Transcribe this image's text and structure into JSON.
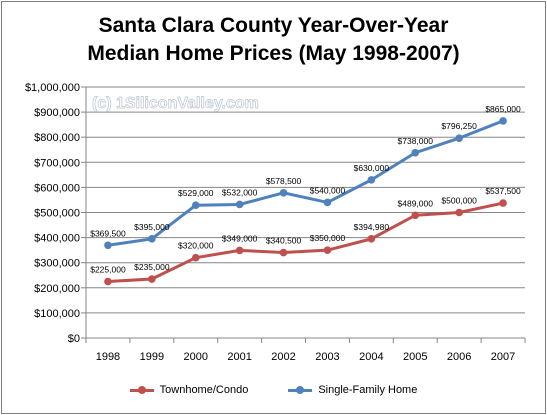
{
  "chart_data": {
    "type": "line",
    "title": [
      "Santa Clara County Year-Over-Year",
      "Median Home Prices (May 1998-2007)"
    ],
    "watermark": "(c) 1SiliconValley.com",
    "categories": [
      "1998",
      "1999",
      "2000",
      "2001",
      "2002",
      "2003",
      "2004",
      "2005",
      "2006",
      "2007"
    ],
    "ylim": [
      0,
      1000000
    ],
    "yticks": [
      {
        "value": 0,
        "label": "$0"
      },
      {
        "value": 100000,
        "label": "$100,000"
      },
      {
        "value": 200000,
        "label": "$200,000"
      },
      {
        "value": 300000,
        "label": "$300,000"
      },
      {
        "value": 400000,
        "label": "$400,000"
      },
      {
        "value": 500000,
        "label": "$500,000"
      },
      {
        "value": 600000,
        "label": "$600,000"
      },
      {
        "value": 700000,
        "label": "$700,000"
      },
      {
        "value": 800000,
        "label": "$800,000"
      },
      {
        "value": 900000,
        "label": "$900,000"
      },
      {
        "value": 1000000,
        "label": "$1,000,000"
      }
    ],
    "grid": true,
    "legend_position": "bottom",
    "series": [
      {
        "name": "Townhome/Condo",
        "color": "#c0504d",
        "values": [
          225000,
          235000,
          320000,
          349000,
          340500,
          350000,
          394980,
          489000,
          500000,
          537500
        ],
        "labels": [
          "$225,000",
          "$235,000",
          "$320,000",
          "$349,000",
          "$340,500",
          "$350,000",
          "$394,980",
          "$489,000",
          "$500,000",
          "$537,500"
        ]
      },
      {
        "name": "Single-Family Home",
        "color": "#4f81bd",
        "values": [
          369500,
          395000,
          529000,
          532000,
          578500,
          540000,
          630000,
          738000,
          796250,
          865000
        ],
        "labels": [
          "$369,500",
          "$395,000",
          "$529,000",
          "$532,000",
          "$578,500",
          "$540,000",
          "$630,000",
          "$738,000",
          "$796,250",
          "$865,000"
        ]
      }
    ]
  }
}
